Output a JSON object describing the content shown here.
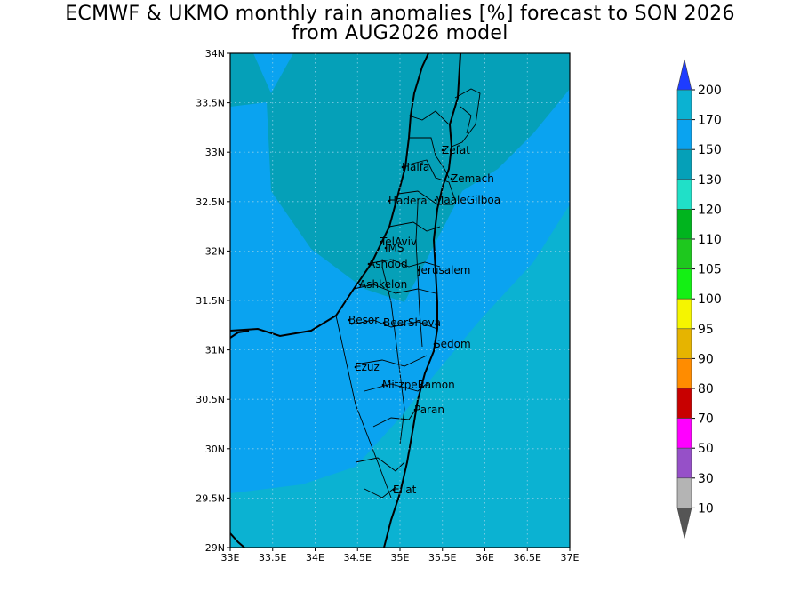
{
  "title_line1": "ECMWF & UKMO monthly rain anomalies [%] forecast to SON 2026",
  "title_line2": "from AUG2026 model",
  "map": {
    "lon_range": [
      33,
      37
    ],
    "lat_range": [
      29,
      34
    ],
    "x_ticks": [
      "33E",
      "33.5E",
      "34E",
      "34.5E",
      "35E",
      "35.5E",
      "36E",
      "36.5E",
      "37E"
    ],
    "y_ticks": [
      "29N",
      "29.5N",
      "30N",
      "30.5N",
      "31N",
      "31.5N",
      "32N",
      "32.5N",
      "33N",
      "33.5N",
      "34N"
    ],
    "grid": "dotted",
    "fill_colors": {
      "band_150_170": "#0aa3f0",
      "band_130_150": "#05a0b8",
      "band_170_200": "#0bb2d2"
    },
    "places": [
      {
        "name": "Zefat"
      },
      {
        "name": "Haifa"
      },
      {
        "name": "Zemach"
      },
      {
        "name": "Hadera"
      },
      {
        "name": "MaaleGilboa"
      },
      {
        "name": "TelAviv"
      },
      {
        "name": "IMS"
      },
      {
        "name": "Ashdod"
      },
      {
        "name": "Jerusalem"
      },
      {
        "name": "Ashkelon"
      },
      {
        "name": "Besor"
      },
      {
        "name": "BeerSheva"
      },
      {
        "name": "Sedom"
      },
      {
        "name": "Ezuz"
      },
      {
        "name": "MitzpeRamon"
      },
      {
        "name": "Paran"
      },
      {
        "name": "Eilat"
      }
    ]
  },
  "colorbar": {
    "levels": [
      "200",
      "170",
      "150",
      "130",
      "120",
      "110",
      "105",
      "100",
      "95",
      "90",
      "80",
      "70",
      "50",
      "30",
      "10"
    ],
    "top_arrow_color": "#1e3cff",
    "bottom_arrow_color": "#555555",
    "colors": [
      "#0bb2d2",
      "#0aa3f0",
      "#05a0b8",
      "#20e0c8",
      "#00b41e",
      "#1ec81e",
      "#14f014",
      "#f5f500",
      "#e6b400",
      "#ff8c00",
      "#c80000",
      "#ff00ff",
      "#9650c8",
      "#b4b4b4"
    ]
  }
}
